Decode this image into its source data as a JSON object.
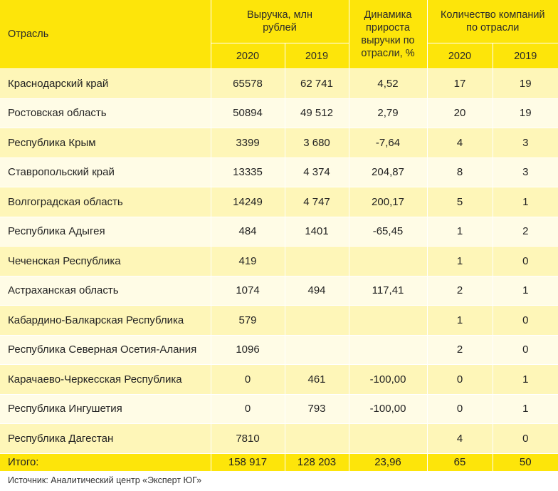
{
  "header": {
    "region": "Отрасль",
    "revenue": "Выручка, млн рублей",
    "growth": "Динамика прироста выручки по отрасли, %",
    "companies": "Количество компаний по отрасли",
    "year_2020": "2020",
    "year_2019": "2019"
  },
  "rows": [
    {
      "region": "Краснодарский край",
      "rev2020": "65578",
      "rev2019": "62 741",
      "growth": "4,52",
      "comp2020": "17",
      "comp2019": "19"
    },
    {
      "region": "Ростовская область",
      "rev2020": "50894",
      "rev2019": "49 512",
      "growth": "2,79",
      "comp2020": "20",
      "comp2019": "19"
    },
    {
      "region": "Республика Крым",
      "rev2020": "3399",
      "rev2019": "3 680",
      "growth": "-7,64",
      "comp2020": "4",
      "comp2019": "3"
    },
    {
      "region": "Ставропольский край",
      "rev2020": "13335",
      "rev2019": "4 374",
      "growth": "204,87",
      "comp2020": "8",
      "comp2019": "3"
    },
    {
      "region": "Волгоградская область",
      "rev2020": "14249",
      "rev2019": "4 747",
      "growth": "200,17",
      "comp2020": "5",
      "comp2019": "1"
    },
    {
      "region": "Республика Адыгея",
      "rev2020": "484",
      "rev2019": "1401",
      "growth": "-65,45",
      "comp2020": "1",
      "comp2019": "2"
    },
    {
      "region": "Чеченская Республика",
      "rev2020": "419",
      "rev2019": "",
      "growth": "",
      "comp2020": "1",
      "comp2019": "0"
    },
    {
      "region": "Астраханская область",
      "rev2020": "1074",
      "rev2019": "494",
      "growth": "117,41",
      "comp2020": "2",
      "comp2019": "1"
    },
    {
      "region": "Кабардино-Балкарская Республика",
      "rev2020": "579",
      "rev2019": "",
      "growth": "",
      "comp2020": "1",
      "comp2019": "0"
    },
    {
      "region": "Республика Северная Осетия-Алания",
      "rev2020": "1096",
      "rev2019": "",
      "growth": "",
      "comp2020": "2",
      "comp2019": "0"
    },
    {
      "region": "Карачаево-Черкесская Республика",
      "rev2020": "0",
      "rev2019": "461",
      "growth": "-100,00",
      "comp2020": "0",
      "comp2019": "1"
    },
    {
      "region": "Республика Ингушетия",
      "rev2020": "0",
      "rev2019": "793",
      "growth": "-100,00",
      "comp2020": "0",
      "comp2019": "1"
    },
    {
      "region": "Республика Дагестан",
      "rev2020": "7810",
      "rev2019": "",
      "growth": "",
      "comp2020": "4",
      "comp2019": "0"
    }
  ],
  "total": {
    "label": "Итого:",
    "rev2020": "158 917",
    "rev2019": "128 203",
    "growth": "23,96",
    "comp2020": "65",
    "comp2019": "50"
  },
  "source": "Источник: Аналитический центр «Эксперт ЮГ»",
  "colors": {
    "header_yellow": "#fde50a",
    "row_light": "#fffce6",
    "row_tint": "#fef6b8"
  }
}
